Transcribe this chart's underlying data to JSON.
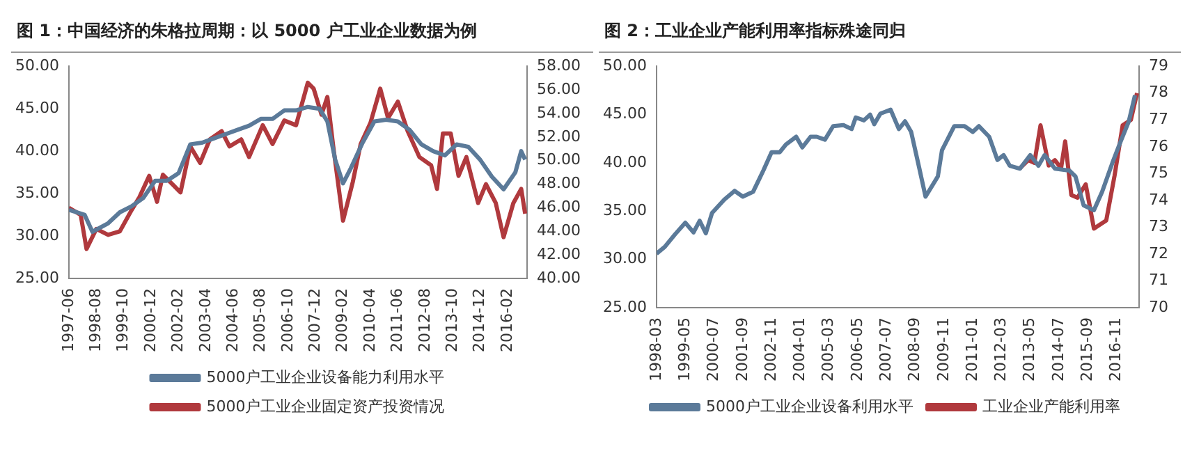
{
  "chart_data": [
    {
      "type": "line",
      "title": "图 1：中国经济的朱格拉周期：以 5000 户工业企业数据为例",
      "legend": "bottom",
      "grid": false,
      "xlim": [
        "1997-06",
        "2016-12"
      ],
      "xticks": [
        "1997-06",
        "1998-08",
        "1999-10",
        "2000-12",
        "2002-02",
        "2003-04",
        "2004-06",
        "2005-08",
        "2006-10",
        "2007-12",
        "2009-02",
        "2010-04",
        "2011-06",
        "2012-08",
        "2013-10",
        "2014-12",
        "2016-02"
      ],
      "ylim": [
        25,
        50
      ],
      "yticks": [
        {
          "value": 25,
          "label": "25.00"
        },
        {
          "value": 30,
          "label": "30.00"
        },
        {
          "value": 35,
          "label": "35.00"
        },
        {
          "value": 40,
          "label": "40.00"
        },
        {
          "value": 45,
          "label": "45.00"
        },
        {
          "value": 50,
          "label": "50.00"
        }
      ],
      "y2lim": [
        40,
        58
      ],
      "y2ticks": [
        {
          "value": 40,
          "label": "40.00"
        },
        {
          "value": 42,
          "label": "42.00"
        },
        {
          "value": 44,
          "label": "44.00"
        },
        {
          "value": 46,
          "label": "46.00"
        },
        {
          "value": 48,
          "label": "48.00"
        },
        {
          "value": 50,
          "label": "50.00"
        },
        {
          "value": 52,
          "label": "52.00"
        },
        {
          "value": 54,
          "label": "54.00"
        },
        {
          "value": 56,
          "label": "56.00"
        },
        {
          "value": 58,
          "label": "58.00"
        }
      ],
      "series": [
        {
          "name": "5000户工业企业设备能力利用水平",
          "color": "#5b7a99",
          "x": [
            "1997-06",
            "1998-02",
            "1998-06",
            "1999-02",
            "1999-08",
            "2000-02",
            "2000-08",
            "2001-02",
            "2001-08",
            "2002-02",
            "2002-08",
            "2003-02",
            "2003-08",
            "2004-02",
            "2004-08",
            "2005-02",
            "2005-08",
            "2006-02",
            "2006-08",
            "2007-02",
            "2007-08",
            "2008-02",
            "2008-06",
            "2008-10",
            "2009-02",
            "2009-06",
            "2009-12",
            "2010-06",
            "2010-12",
            "2011-06",
            "2011-12",
            "2012-06",
            "2012-12",
            "2013-06",
            "2013-12",
            "2014-06",
            "2014-12",
            "2015-06",
            "2015-12",
            "2016-06",
            "2016-09",
            "2016-11"
          ],
          "values": [
            33.1,
            32.5,
            30.5,
            31.5,
            32.8,
            33.5,
            34.5,
            36.5,
            36.5,
            37.4,
            40.8,
            41,
            41.5,
            42,
            42.5,
            43,
            43.8,
            43.8,
            44.8,
            44.8,
            45.2,
            45,
            43.5,
            39,
            36.2,
            38,
            41,
            43.5,
            43.7,
            43.5,
            42.5,
            40.8,
            40,
            39.5,
            40.8,
            40.5,
            39,
            37,
            35.5,
            37.5,
            40,
            39
          ]
        },
        {
          "name": "5000户工业企业固定资产投资情况",
          "color": "#b0393d",
          "axis": "y2",
          "x": [
            "1997-06",
            "1997-12",
            "1998-03",
            "1998-08",
            "1999-02",
            "1999-08",
            "2000-02",
            "2000-06",
            "2000-11",
            "2001-03",
            "2001-06",
            "2001-12",
            "2002-03",
            "2002-08",
            "2003-01",
            "2003-06",
            "2003-12",
            "2004-04",
            "2004-10",
            "2005-02",
            "2005-09",
            "2006-02",
            "2006-08",
            "2007-02",
            "2007-08",
            "2007-11",
            "2008-03",
            "2008-06",
            "2008-09",
            "2009-02",
            "2009-07",
            "2009-11",
            "2010-04",
            "2010-09",
            "2011-01",
            "2011-06",
            "2011-11",
            "2012-05",
            "2012-11",
            "2013-02",
            "2013-05",
            "2013-09",
            "2014-01",
            "2014-05",
            "2014-11",
            "2015-03",
            "2015-08",
            "2015-12",
            "2016-05",
            "2016-09",
            "2016-11"
          ],
          "values": [
            46,
            45.4,
            42.5,
            44.2,
            43.7,
            44,
            45.8,
            46.9,
            48.7,
            46.5,
            48.8,
            47.8,
            47.3,
            51.2,
            49.8,
            51.8,
            52.5,
            51.2,
            51.8,
            50.3,
            53,
            51.4,
            53.4,
            53,
            56.6,
            56.1,
            53.9,
            55.4,
            51.2,
            44.9,
            48.2,
            51.4,
            53.2,
            56.1,
            53.6,
            55,
            52.5,
            50.3,
            49.6,
            47.6,
            52.3,
            52.3,
            48.7,
            50.3,
            46.4,
            48,
            46.4,
            43.5,
            46.4,
            47.6,
            45.5
          ]
        }
      ]
    },
    {
      "type": "line",
      "title": "图 2：工业企业产能利用率指标殊途同归",
      "legend": "bottom",
      "grid": false,
      "xlim": [
        "1998-03",
        "2017-10"
      ],
      "xticks": [
        "1998-03",
        "1999-05",
        "2000-07",
        "2001-09",
        "2002-11",
        "2004-01",
        "2005-03",
        "2006-05",
        "2007-07",
        "2008-09",
        "2009-11",
        "2011-01",
        "2012-03",
        "2013-05",
        "2014-07",
        "2015-09",
        "2016-11"
      ],
      "ylim": [
        25,
        50
      ],
      "yticks": [
        {
          "value": 25,
          "label": "25.00"
        },
        {
          "value": 30,
          "label": "30.00"
        },
        {
          "value": 35,
          "label": "35.00"
        },
        {
          "value": 40,
          "label": "40.00"
        },
        {
          "value": 45,
          "label": "45.00"
        },
        {
          "value": 50,
          "label": "50.00"
        }
      ],
      "y2lim": [
        70,
        79
      ],
      "y2ticks": [
        70,
        71,
        72,
        73,
        74,
        75,
        76,
        77,
        78,
        79
      ],
      "series": [
        {
          "name": "5000户工业企业设备利用水平",
          "color": "#5b7a99",
          "x": [
            "1998-03",
            "1998-07",
            "1998-12",
            "1999-05",
            "1999-09",
            "1999-12",
            "2000-03",
            "2000-06",
            "2000-12",
            "2001-05",
            "2001-09",
            "2002-02",
            "2002-07",
            "2002-11",
            "2003-03",
            "2003-06",
            "2003-11",
            "2004-02",
            "2004-06",
            "2004-09",
            "2005-01",
            "2005-05",
            "2005-10",
            "2006-02",
            "2006-04",
            "2006-08",
            "2006-11",
            "2007-01",
            "2007-04",
            "2007-09",
            "2008-01",
            "2008-04",
            "2008-07",
            "2008-11",
            "2009-02",
            "2009-08",
            "2009-10",
            "2010-04",
            "2010-09",
            "2011-01",
            "2011-04",
            "2011-09",
            "2012-01",
            "2012-04",
            "2012-07",
            "2012-12",
            "2013-05",
            "2013-09",
            "2013-12",
            "2014-05",
            "2014-12",
            "2015-03",
            "2015-07",
            "2015-12",
            "2016-04",
            "2016-09",
            "2017-01",
            "2017-05",
            "2017-08"
          ],
          "values": [
            30.6,
            31.3,
            32.6,
            33.8,
            32.8,
            34,
            32.7,
            34.8,
            36.2,
            37.1,
            36.5,
            37,
            39.2,
            41.1,
            41.1,
            41.9,
            42.7,
            41.6,
            42.7,
            42.7,
            42.4,
            43.8,
            43.9,
            43.5,
            44.7,
            44.4,
            45,
            44,
            45.1,
            45.5,
            43.5,
            44.3,
            43.2,
            39.4,
            36.5,
            38.6,
            41.3,
            43.8,
            43.8,
            43.2,
            43.8,
            42.7,
            40.3,
            40.8,
            39.7,
            39.4,
            40.8,
            39.7,
            40.8,
            39.4,
            39.2,
            38.6,
            35.6,
            35.1,
            37,
            40,
            42.2,
            44.3,
            47
          ]
        },
        {
          "name": "工业企业产能利用率",
          "color": "#b0393d",
          "axis": "y2",
          "x": [
            "2012-12",
            "2013-04",
            "2013-07",
            "2013-10",
            "2014-02",
            "2014-05",
            "2014-08",
            "2014-10",
            "2015-01",
            "2015-04",
            "2015-08",
            "2015-12",
            "2016-02",
            "2016-06",
            "2016-10",
            "2017-02",
            "2017-06",
            "2017-09"
          ],
          "values": [
            75.2,
            75.5,
            75.4,
            76.8,
            75.3,
            75.5,
            75.2,
            76.2,
            74.2,
            74.1,
            74.6,
            72.95,
            73.05,
            73.25,
            74.9,
            76.8,
            77,
            78
          ]
        }
      ]
    }
  ]
}
